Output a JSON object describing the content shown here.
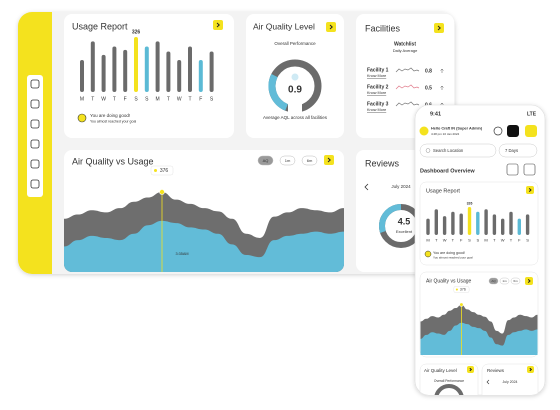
{
  "desktop": {
    "usage_report": {
      "title": "Usage Report",
      "days": [
        "M",
        "T",
        "W",
        "T",
        "F",
        "S",
        "S",
        "M",
        "T",
        "W",
        "T",
        "F",
        "S"
      ],
      "values": [
        190,
        300,
        220,
        270,
        250,
        326,
        270,
        300,
        240,
        190,
        270,
        190,
        240
      ],
      "colors": [
        "#6b6b6b",
        "#6b6b6b",
        "#6b6b6b",
        "#6b6b6b",
        "#6b6b6b",
        "#f4e21e",
        "#5bbad5",
        "#6b6b6b",
        "#6b6b6b",
        "#6b6b6b",
        "#6b6b6b",
        "#5bbad5",
        "#6b6b6b"
      ],
      "message": "You are doing good!",
      "submessage": "You almost reached your goal"
    },
    "air_quality": {
      "title": "Air Quality Level",
      "subtitle": "Overall Performance",
      "value": 0.9,
      "caption": "Average AQL across all facilities"
    },
    "facilities": {
      "title": "Facilities",
      "watchlist": "Watchlist",
      "subtitle": "Daily Average",
      "items": [
        {
          "name": "Facility 1",
          "link": "Know More",
          "value": 0.8
        },
        {
          "name": "Facility 2",
          "link": "Know More",
          "value": 0.5
        },
        {
          "name": "Facility 3",
          "link": "Know More",
          "value": 0.6
        }
      ]
    },
    "aq_vs_usage": {
      "title": "Air Quality vs Usage",
      "filters": [
        "AQ",
        "1m",
        "6m"
      ],
      "time_label": "3:35AM",
      "series": [
        {
          "color": "#6e6e6e",
          "values": [
            250,
            270,
            290,
            280,
            300,
            330,
            350,
            376,
            340,
            320,
            300,
            285,
            250,
            180,
            160,
            260,
            280,
            300,
            290,
            280,
            300
          ]
        },
        {
          "color": "#62bcd8",
          "values": [
            120,
            150,
            170,
            160,
            150,
            180,
            220,
            240,
            230,
            210,
            200,
            180,
            130,
            80,
            70,
            150,
            170,
            180,
            190,
            180,
            190
          ]
        }
      ]
    },
    "reviews": {
      "title": "Reviews",
      "month": "July 2024",
      "rating": 4.5,
      "rating_label": "Excellent"
    }
  },
  "mobile": {
    "time": "9:41",
    "network": "LTE",
    "greeting": "Hello Craft IN (Super Admin)",
    "datetime": "4:48 pm 10 Jan 2024",
    "search": "Search Location",
    "range": "7 Days",
    "section": "Dashboard Overview"
  }
}
